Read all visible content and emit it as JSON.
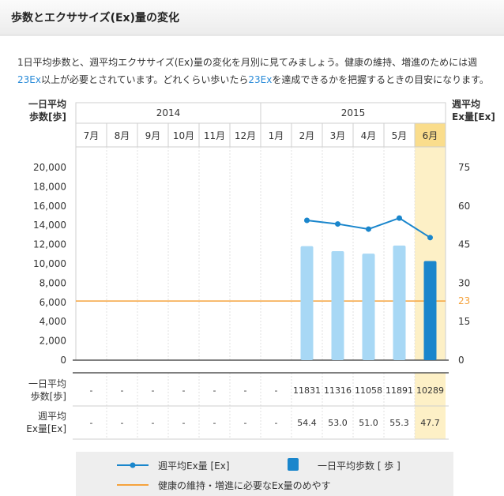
{
  "page": {
    "title": "歩数とエクササイズ(Ex)量の変化"
  },
  "intro": {
    "line1": "1日平均歩数と、週平均エクササイズ(Ex)量の変化を月別に見てみましょう。健康の維持、増進のためには週",
    "line2_num": "23Ex",
    "line2_mid": "以上が必要とされています。どれくらい歩いたら",
    "line2_num2": "23Ex",
    "line2_end": "を達成できるかを把握するときの目安になります。"
  },
  "colors": {
    "bar": "#a8d8f5",
    "bar_current": "#1a86cc",
    "line": "#1a86cc",
    "target": "#f5a23c",
    "highlight": "#fdf0c6",
    "highlight_dark": "#fadd8c"
  },
  "chart_data": {
    "type": "bar",
    "years": [
      {
        "label": "2014",
        "months": [
          "7月",
          "8月",
          "9月",
          "10月",
          "11月",
          "12月"
        ]
      },
      {
        "label": "2015",
        "months": [
          "1月",
          "2月",
          "3月",
          "4月",
          "5月",
          "6月"
        ]
      }
    ],
    "categories": [
      "7月",
      "8月",
      "9月",
      "10月",
      "11月",
      "12月",
      "1月",
      "2月",
      "3月",
      "4月",
      "5月",
      "6月"
    ],
    "highlighted_category": "6月",
    "left_axis_label": [
      "一日平均",
      "歩数[歩]"
    ],
    "right_axis_label": [
      "週平均",
      "Ex量[Ex]"
    ],
    "left_ticks": [
      "20,000",
      "18,000",
      "16,000",
      "14,000",
      "12,000",
      "10,000",
      "8,000",
      "6,000",
      "4,000",
      "2,000",
      "0"
    ],
    "right_ticks": [
      "75",
      "60",
      "45",
      "30",
      "15",
      "0"
    ],
    "ylim_left": [
      0,
      20000
    ],
    "ylim_right": [
      0,
      75
    ],
    "target_label": "23",
    "target_value": 23,
    "series": [
      {
        "name": "一日平均歩数[歩]",
        "kind": "bar",
        "values": [
          null,
          null,
          null,
          null,
          null,
          null,
          null,
          11831,
          11316,
          11058,
          11891,
          10289
        ]
      },
      {
        "name": "週平均Ex量[Ex]",
        "kind": "line",
        "values": [
          null,
          null,
          null,
          null,
          null,
          null,
          null,
          54.4,
          53.0,
          51.0,
          55.3,
          47.7
        ]
      }
    ],
    "table": {
      "row1_label": [
        "一日平均",
        "歩数[歩]"
      ],
      "row1_values": [
        "-",
        "-",
        "-",
        "-",
        "-",
        "-",
        "-",
        "11831",
        "11316",
        "11058",
        "11891",
        "10289"
      ],
      "row2_label": [
        "週平均",
        "Ex量[Ex]"
      ],
      "row2_values": [
        "-",
        "-",
        "-",
        "-",
        "-",
        "-",
        "-",
        "54.4",
        "53.0",
        "51.0",
        "55.3",
        "47.7"
      ]
    }
  },
  "legend": {
    "line_label": "週平均Ex量 [Ex]",
    "bar_label": "一日平均歩数 [ 歩 ]",
    "target_label": "健康の維持・増進に必要なEx量のめやす"
  }
}
